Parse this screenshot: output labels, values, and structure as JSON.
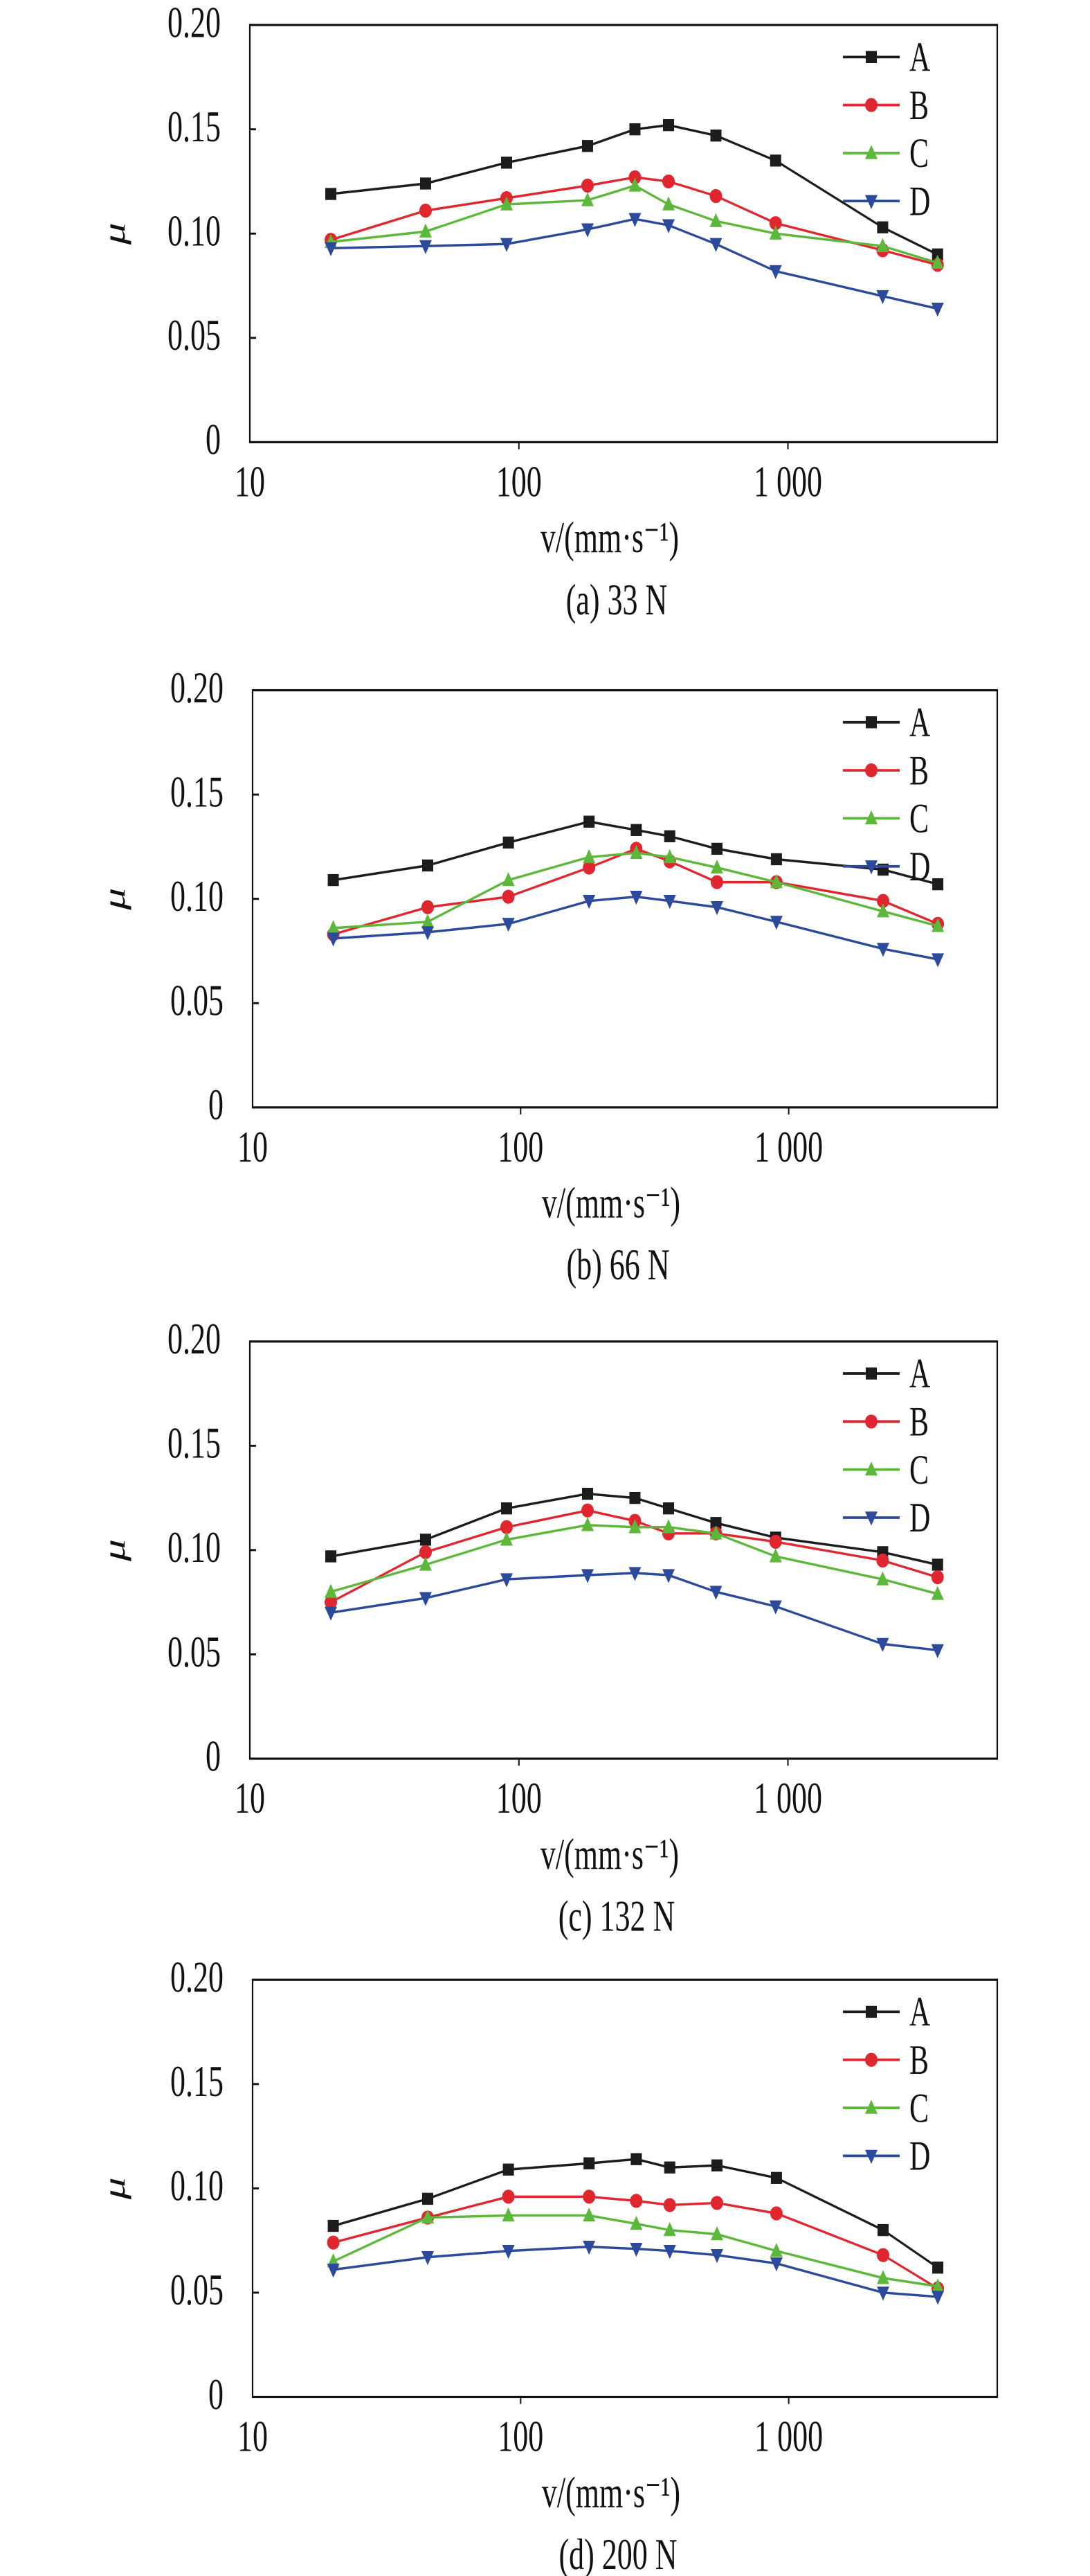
{
  "chart_data": [
    {
      "type": "line",
      "caption": "(a) 33 N",
      "xlabel": "v/(mm·s⁻¹)",
      "ylabel": "μ",
      "xscale": "log",
      "xlim": [
        10,
        6000
      ],
      "ylim": [
        0,
        0.2
      ],
      "xticks": [
        10,
        100,
        1000
      ],
      "xtick_labels": [
        "10",
        "100",
        "1 000"
      ],
      "yticks": [
        0,
        0.05,
        0.1,
        0.15,
        0.2
      ],
      "ytick_labels": [
        "0",
        "0.05",
        "0.10",
        "0.15",
        "0.20"
      ],
      "legend": "top-right",
      "x": [
        20,
        45,
        90,
        180,
        270,
        360,
        540,
        900,
        2250,
        3600
      ],
      "series": [
        {
          "name": "A",
          "values": [
            0.119,
            0.124,
            0.134,
            0.142,
            0.15,
            0.152,
            0.147,
            0.135,
            0.103,
            0.09
          ]
        },
        {
          "name": "B",
          "values": [
            0.097,
            0.111,
            0.117,
            0.123,
            0.127,
            0.125,
            0.118,
            0.105,
            0.092,
            0.085
          ]
        },
        {
          "name": "C",
          "values": [
            0.096,
            0.101,
            0.114,
            0.116,
            0.123,
            0.114,
            0.106,
            0.1,
            0.094,
            0.086
          ]
        },
        {
          "name": "D",
          "values": [
            0.093,
            0.094,
            0.095,
            0.102,
            0.107,
            0.104,
            0.095,
            0.082,
            0.07,
            0.064
          ]
        }
      ]
    },
    {
      "type": "line",
      "caption": "(b) 66 N",
      "xlabel": "v/(mm·s⁻¹)",
      "ylabel": "μ",
      "xscale": "log",
      "xlim": [
        10,
        6000
      ],
      "ylim": [
        0,
        0.2
      ],
      "xticks": [
        10,
        100,
        1000
      ],
      "xtick_labels": [
        "10",
        "100",
        "1 000"
      ],
      "yticks": [
        0,
        0.05,
        0.1,
        0.15,
        0.2
      ],
      "ytick_labels": [
        "0",
        "0.05",
        "0.10",
        "0.15",
        "0.20"
      ],
      "legend": "top-right",
      "x": [
        20,
        45,
        90,
        180,
        270,
        360,
        540,
        900,
        2250,
        3600
      ],
      "series": [
        {
          "name": "A",
          "values": [
            0.109,
            0.116,
            0.127,
            0.137,
            0.133,
            0.13,
            0.124,
            0.119,
            0.114,
            0.107
          ]
        },
        {
          "name": "B",
          "values": [
            0.083,
            0.096,
            0.101,
            0.115,
            0.124,
            0.118,
            0.108,
            0.108,
            0.099,
            0.088
          ]
        },
        {
          "name": "C",
          "values": [
            0.086,
            0.089,
            0.109,
            0.12,
            0.122,
            0.12,
            0.115,
            0.108,
            0.094,
            0.087
          ]
        },
        {
          "name": "D",
          "values": [
            0.081,
            0.084,
            0.088,
            0.099,
            0.101,
            0.099,
            0.096,
            0.089,
            0.076,
            0.071
          ]
        }
      ]
    },
    {
      "type": "line",
      "caption": "(c) 132 N",
      "xlabel": "v/(mm·s⁻¹)",
      "ylabel": "μ",
      "xscale": "log",
      "xlim": [
        10,
        6000
      ],
      "ylim": [
        0,
        0.2
      ],
      "xticks": [
        10,
        100,
        1000
      ],
      "xtick_labels": [
        "10",
        "100",
        "1 000"
      ],
      "yticks": [
        0,
        0.05,
        0.1,
        0.15,
        0.2
      ],
      "ytick_labels": [
        "0",
        "0.05",
        "0.10",
        "0.15",
        "0.20"
      ],
      "legend": "top-right",
      "x": [
        20,
        45,
        90,
        180,
        270,
        360,
        540,
        900,
        2250,
        3600
      ],
      "series": [
        {
          "name": "A",
          "values": [
            0.097,
            0.105,
            0.12,
            0.127,
            0.125,
            0.12,
            0.113,
            0.106,
            0.099,
            0.093
          ]
        },
        {
          "name": "B",
          "values": [
            0.075,
            0.099,
            0.111,
            0.119,
            0.114,
            0.108,
            0.108,
            0.104,
            0.095,
            0.087
          ]
        },
        {
          "name": "C",
          "values": [
            0.08,
            0.093,
            0.105,
            0.112,
            0.111,
            0.111,
            0.108,
            0.097,
            0.086,
            0.079
          ]
        },
        {
          "name": "D",
          "values": [
            0.07,
            0.077,
            0.086,
            0.088,
            0.089,
            0.088,
            0.08,
            0.073,
            0.055,
            0.052
          ]
        }
      ]
    },
    {
      "type": "line",
      "caption": "(d) 200 N",
      "xlabel": "v/(mm·s⁻¹)",
      "ylabel": "μ",
      "xscale": "log",
      "xlim": [
        10,
        6000
      ],
      "ylim": [
        0,
        0.2
      ],
      "xticks": [
        10,
        100,
        1000
      ],
      "xtick_labels": [
        "10",
        "100",
        "1 000"
      ],
      "yticks": [
        0,
        0.05,
        0.1,
        0.15,
        0.2
      ],
      "ytick_labels": [
        "0",
        "0.05",
        "0.10",
        "0.15",
        "0.20"
      ],
      "legend": "top-right",
      "x": [
        20,
        45,
        90,
        180,
        270,
        360,
        540,
        900,
        2250,
        3600
      ],
      "series": [
        {
          "name": "A",
          "values": [
            0.082,
            0.095,
            0.109,
            0.112,
            0.114,
            0.11,
            0.111,
            0.105,
            0.08,
            0.062
          ]
        },
        {
          "name": "B",
          "values": [
            0.074,
            0.086,
            0.096,
            0.096,
            0.094,
            0.092,
            0.093,
            0.088,
            0.068,
            0.052
          ]
        },
        {
          "name": "C",
          "values": [
            0.065,
            0.086,
            0.087,
            0.087,
            0.083,
            0.08,
            0.078,
            0.07,
            0.057,
            0.053
          ]
        },
        {
          "name": "D",
          "values": [
            0.061,
            0.067,
            0.07,
            0.072,
            0.071,
            0.07,
            0.068,
            0.064,
            0.05,
            0.048
          ]
        }
      ]
    }
  ],
  "style": {
    "colors": {
      "A": "#1c1c1c",
      "B": "#e0262f",
      "C": "#5cb83a",
      "D": "#2b4a9b"
    },
    "markers": {
      "A": "square",
      "B": "circle",
      "C": "triangle-up",
      "D": "triangle-down"
    }
  }
}
